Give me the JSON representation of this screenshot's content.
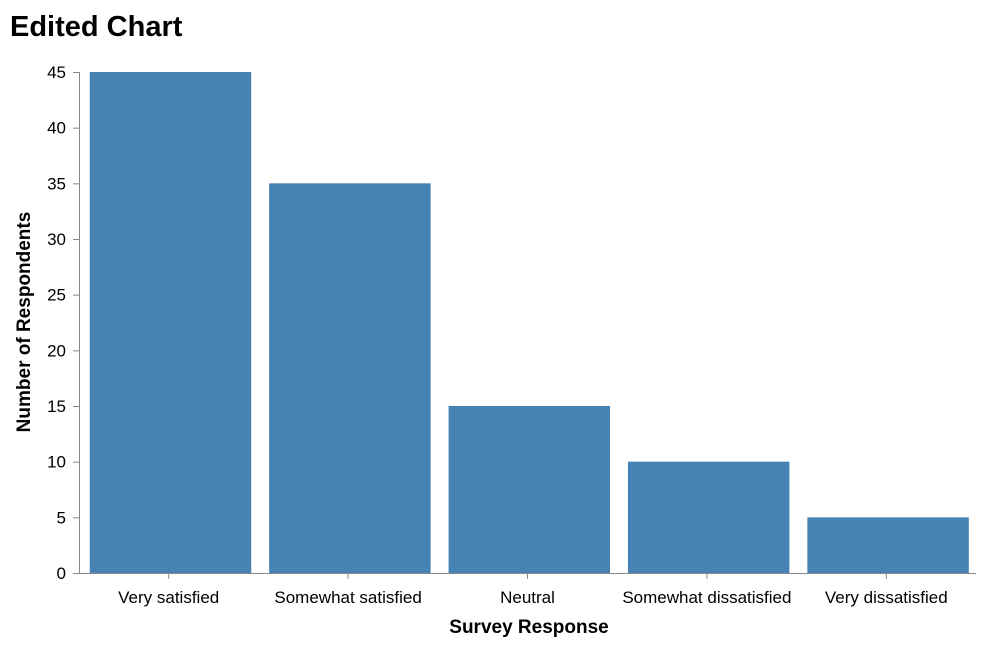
{
  "chart_data": {
    "type": "bar",
    "title": "Edited Chart",
    "xlabel": "Survey Response",
    "ylabel": "Number of Respondents",
    "categories": [
      "Very satisfied",
      "Somewhat satisfied",
      "Neutral",
      "Somewhat dissatisfied",
      "Very dissatisfied"
    ],
    "values": [
      45,
      35,
      15,
      10,
      5
    ],
    "ylim": [
      0,
      45
    ],
    "yticks": [
      0,
      5,
      10,
      15,
      20,
      25,
      30,
      35,
      40,
      45
    ],
    "grid": false,
    "bar_color": "#4682b4"
  }
}
